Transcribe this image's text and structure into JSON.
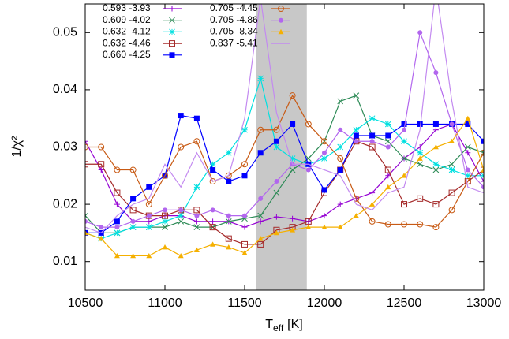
{
  "chart_data": {
    "type": "line",
    "ylabel": "1/χ²",
    "xlabel": [
      "T",
      "eff",
      "[K]"
    ],
    "xlim": [
      10500,
      13000
    ],
    "ylim": [
      0.005,
      0.055
    ],
    "xticks": [
      10500,
      11000,
      11500,
      12000,
      12500,
      13000
    ],
    "yticks": [
      0.01,
      0.02,
      0.03,
      0.04,
      0.05
    ],
    "shaded_region": [
      11570,
      11890
    ],
    "shaded_color": "#c8c8c8",
    "legend": "upper left",
    "x": [
      10500,
      10600,
      10700,
      10800,
      10900,
      11000,
      11100,
      11200,
      11300,
      11400,
      11500,
      11600,
      11700,
      11800,
      11900,
      12000,
      12100,
      12200,
      12300,
      12400,
      12500,
      12600,
      12700,
      12800,
      12900,
      13000
    ],
    "series": [
      {
        "name": "0.593 -3.93",
        "color": "#9400d3",
        "marker": "plus",
        "values": [
          0.031,
          0.026,
          0.02,
          0.017,
          0.017,
          0.018,
          0.018,
          0.017,
          0.017,
          0.017,
          0.016,
          0.017,
          0.0178,
          0.0175,
          0.017,
          0.018,
          0.02,
          0.021,
          0.022,
          0.025,
          0.028,
          0.03,
          0.033,
          0.034,
          0.029,
          0.024
        ]
      },
      {
        "name": "0.609 -4.02",
        "color": "#2e8b57",
        "marker": "cross",
        "values": [
          0.018,
          0.015,
          0.015,
          0.016,
          0.016,
          0.016,
          0.017,
          0.016,
          0.016,
          0.017,
          0.0175,
          0.018,
          0.022,
          0.026,
          0.028,
          0.031,
          0.038,
          0.039,
          0.032,
          0.031,
          0.028,
          0.027,
          0.026,
          0.027,
          0.03,
          0.029
        ]
      },
      {
        "name": "0.632 -4.12",
        "color": "#00e0e0",
        "marker": "star",
        "values": [
          0.015,
          0.014,
          0.015,
          0.016,
          0.016,
          0.017,
          0.018,
          0.023,
          0.027,
          0.029,
          0.033,
          0.042,
          0.03,
          0.028,
          0.027,
          0.028,
          0.03,
          0.033,
          0.035,
          0.034,
          0.031,
          0.029,
          0.027,
          0.026,
          0.025,
          0.025
        ]
      },
      {
        "name": "0.632 -4.46",
        "color": "#a52a2a",
        "marker": "open-square",
        "values": [
          0.027,
          0.027,
          0.022,
          0.019,
          0.018,
          0.018,
          0.019,
          0.019,
          0.016,
          0.014,
          0.013,
          0.013,
          0.0155,
          0.016,
          0.017,
          0.022,
          0.026,
          0.031,
          0.03,
          0.026,
          0.02,
          0.021,
          0.02,
          0.022,
          0.024,
          0.026
        ]
      },
      {
        "name": "0.660 -4.25",
        "color": "#0000ff",
        "marker": "filled-square",
        "values": [
          0.015,
          0.015,
          0.017,
          0.021,
          0.023,
          0.025,
          0.0355,
          0.035,
          0.026,
          0.024,
          0.025,
          0.029,
          0.031,
          0.034,
          0.027,
          0.0225,
          0.026,
          0.032,
          0.032,
          0.032,
          0.034,
          0.034,
          0.034,
          0.034,
          0.034,
          0.031
        ]
      },
      {
        "name": "0.705 -4.45",
        "color": "#c85a14",
        "marker": "open-circle",
        "values": [
          0.03,
          0.03,
          0.026,
          0.026,
          0.02,
          0.025,
          0.03,
          0.031,
          0.024,
          0.025,
          0.027,
          0.033,
          0.033,
          0.039,
          0.034,
          0.031,
          0.028,
          0.021,
          0.017,
          0.0165,
          0.0165,
          0.0165,
          0.016,
          0.019,
          0.024,
          0.029
        ]
      },
      {
        "name": "0.705 -4.86",
        "color": "#b266ee",
        "marker": "filled-circle",
        "values": [
          0.017,
          0.016,
          0.016,
          0.017,
          0.018,
          0.019,
          0.019,
          0.018,
          0.019,
          0.018,
          0.018,
          0.021,
          0.024,
          0.027,
          0.026,
          0.029,
          0.033,
          0.031,
          0.031,
          0.03,
          0.033,
          0.05,
          0.043,
          0.034,
          0.026,
          0.023
        ]
      },
      {
        "name": "0.705 -8.34",
        "color": "#f5b000",
        "marker": "filled-triangle",
        "values": [
          0.015,
          0.014,
          0.011,
          0.011,
          0.011,
          0.0125,
          0.011,
          0.012,
          0.013,
          0.0125,
          0.0115,
          0.014,
          0.015,
          0.0155,
          0.016,
          0.016,
          0.016,
          0.018,
          0.02,
          0.023,
          0.025,
          0.028,
          0.03,
          0.031,
          0.035,
          0.026
        ]
      },
      {
        "name": "0.837 -5.41",
        "color": "#c38af0",
        "marker": "none",
        "values": [
          0.016,
          0.015,
          0.018,
          0.02,
          0.021,
          0.027,
          0.023,
          0.029,
          0.024,
          0.025,
          0.035,
          0.056,
          0.036,
          0.027,
          0.027,
          0.026,
          0.025,
          0.02,
          0.019,
          0.022,
          0.023,
          0.033,
          0.058,
          0.038,
          0.023,
          0.022
        ]
      }
    ]
  }
}
